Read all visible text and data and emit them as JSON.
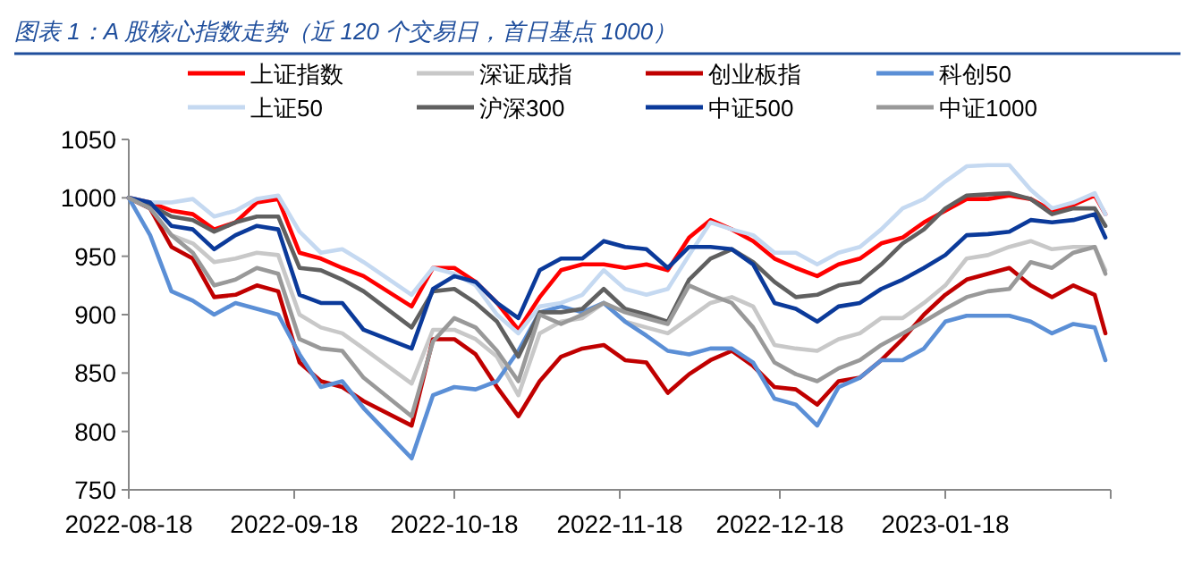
{
  "chart_data": {
    "type": "line",
    "title": "图表 1：A 股核心指数走势（近 120 个交易日，首日基点 1000）",
    "x": [
      "2022-08-18",
      "2022-08-22",
      "2022-08-26",
      "2022-08-30",
      "2022-09-03",
      "2022-09-07",
      "2022-09-11",
      "2022-09-15",
      "2022-09-19",
      "2022-09-23",
      "2022-09-27",
      "2022-10-01",
      "2022-10-10",
      "2022-10-14",
      "2022-10-18",
      "2022-10-22",
      "2022-10-26",
      "2022-10-30",
      "2022-11-03",
      "2022-11-07",
      "2022-11-11",
      "2022-11-15",
      "2022-11-19",
      "2022-11-23",
      "2022-11-27",
      "2022-12-01",
      "2022-12-05",
      "2022-12-09",
      "2022-12-13",
      "2022-12-17",
      "2022-12-21",
      "2022-12-25",
      "2022-12-29",
      "2023-01-02",
      "2023-01-06",
      "2023-01-10",
      "2023-01-14",
      "2023-01-18",
      "2023-01-22",
      "2023-01-26",
      "2023-01-30",
      "2023-02-03",
      "2023-02-07",
      "2023-02-11",
      "2023-02-15",
      "2023-02-17"
    ],
    "series": [
      {
        "name": "上证指数",
        "color": "#ff0000",
        "values": [
          1000,
          996,
          989,
          986,
          973,
          979,
          996,
          999,
          953,
          948,
          940,
          933,
          907,
          940,
          940,
          928,
          910,
          887,
          915,
          938,
          943,
          943,
          940,
          943,
          938,
          966,
          981,
          973,
          963,
          948,
          940,
          933,
          943,
          948,
          961,
          966,
          979,
          989,
          999,
          999,
          1002,
          999,
          989,
          994,
          1002,
          986
        ]
      },
      {
        "name": "深证成指",
        "color": "#c8c8c8",
        "values": [
          1000,
          991,
          968,
          961,
          945,
          948,
          953,
          951,
          900,
          889,
          884,
          871,
          841,
          887,
          887,
          879,
          864,
          831,
          884,
          894,
          897,
          910,
          894,
          889,
          884,
          897,
          910,
          915,
          907,
          874,
          871,
          869,
          879,
          884,
          897,
          897,
          910,
          925,
          948,
          951,
          958,
          963,
          956,
          958,
          958,
          938
        ]
      },
      {
        "name": "创业板指",
        "color": "#c00000",
        "values": [
          1000,
          991,
          958,
          948,
          915,
          917,
          925,
          920,
          859,
          843,
          838,
          826,
          805,
          879,
          879,
          866,
          838,
          813,
          843,
          864,
          871,
          874,
          861,
          859,
          833,
          849,
          861,
          869,
          856,
          838,
          836,
          823,
          843,
          846,
          861,
          879,
          900,
          917,
          930,
          935,
          940,
          925,
          915,
          925,
          917,
          884
        ]
      },
      {
        "name": "科创50",
        "color": "#5b8fd6",
        "values": [
          1000,
          968,
          920,
          912,
          900,
          910,
          905,
          900,
          866,
          838,
          843,
          820,
          777,
          831,
          838,
          836,
          843,
          869,
          902,
          907,
          902,
          910,
          894,
          882,
          869,
          866,
          871,
          871,
          859,
          828,
          823,
          805,
          838,
          846,
          861,
          861,
          871,
          894,
          899,
          899,
          899,
          894,
          884,
          892,
          889,
          861
        ]
      },
      {
        "name": "上证50",
        "color": "#c5d9f1",
        "values": [
          1000,
          996,
          996,
          999,
          984,
          989,
          999,
          1002,
          971,
          953,
          956,
          945,
          917,
          940,
          935,
          925,
          900,
          884,
          907,
          910,
          917,
          938,
          922,
          917,
          922,
          951,
          979,
          973,
          968,
          953,
          953,
          943,
          953,
          958,
          973,
          991,
          999,
          1014,
          1027,
          1028,
          1028,
          1007,
          991,
          996,
          1004,
          986
        ]
      },
      {
        "name": "沪深300",
        "color": "#606060",
        "values": [
          1000,
          994,
          984,
          981,
          971,
          979,
          984,
          984,
          940,
          938,
          930,
          920,
          889,
          920,
          922,
          910,
          894,
          864,
          902,
          902,
          905,
          922,
          905,
          900,
          894,
          930,
          948,
          956,
          945,
          928,
          915,
          917,
          925,
          928,
          943,
          961,
          973,
          991,
          1002,
          1003,
          1004,
          999,
          986,
          991,
          991,
          976
        ]
      },
      {
        "name": "中证500",
        "color": "#0b3a9a",
        "values": [
          1000,
          996,
          976,
          973,
          956,
          968,
          976,
          973,
          917,
          910,
          910,
          887,
          871,
          922,
          933,
          928,
          910,
          897,
          938,
          948,
          948,
          963,
          958,
          956,
          940,
          958,
          958,
          956,
          943,
          910,
          905,
          894,
          907,
          910,
          922,
          930,
          940,
          951,
          968,
          969,
          971,
          981,
          979,
          981,
          986,
          966
        ]
      },
      {
        "name": "中证1000",
        "color": "#999999",
        "values": [
          1000,
          991,
          968,
          953,
          925,
          930,
          940,
          935,
          879,
          871,
          869,
          846,
          813,
          877,
          897,
          889,
          869,
          843,
          900,
          892,
          900,
          910,
          902,
          897,
          892,
          925,
          917,
          910,
          889,
          859,
          849,
          843,
          854,
          861,
          874,
          884,
          894,
          905,
          915,
          920,
          922,
          945,
          940,
          953,
          958,
          935
        ]
      }
    ],
    "xlim": [
      "2022-08-18",
      "2023-02-18"
    ],
    "xticks": [
      {
        "value": "2022-08-18",
        "label": "2022-08-18"
      },
      {
        "value": "2022-09-18",
        "label": "2022-09-18"
      },
      {
        "value": "2022-10-18",
        "label": "2022-10-18"
      },
      {
        "value": "2022-11-18",
        "label": "2022-11-18"
      },
      {
        "value": "2022-12-18",
        "label": "2022-12-18"
      },
      {
        "value": "2023-01-18",
        "label": "2023-01-18"
      },
      {
        "value": "2023-02-18",
        "label": null
      }
    ],
    "ylim": [
      750,
      1050
    ],
    "yticks": [
      750,
      800,
      850,
      900,
      950,
      1000,
      1050
    ],
    "grid": false,
    "legend": "top"
  }
}
